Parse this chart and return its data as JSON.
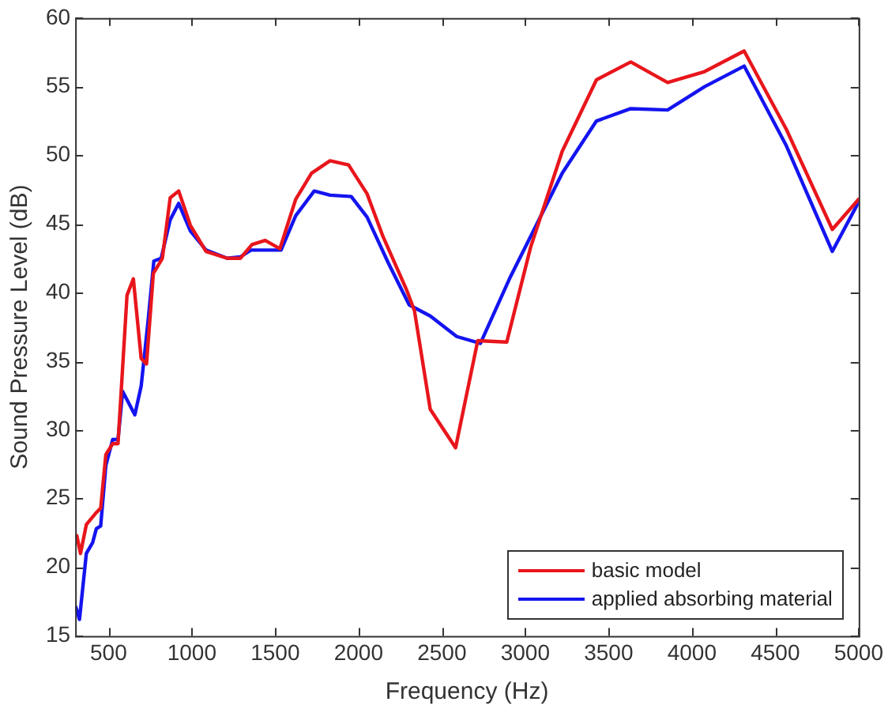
{
  "chart_data": {
    "type": "line",
    "xlabel": "Frequency (Hz)",
    "ylabel": "Sound Pressure Level (dB)",
    "xlim": [
      300,
      5000
    ],
    "xticks": [
      500,
      1000,
      1500,
      2000,
      2500,
      3000,
      3500,
      4000,
      4500,
      5000
    ],
    "ylim": [
      15,
      60
    ],
    "yticks": [
      15,
      20,
      25,
      30,
      35,
      40,
      45,
      50,
      55,
      60
    ],
    "legend": "bottom right",
    "marker": "none",
    "line_style": "solid",
    "series": [
      {
        "name": "basic model",
        "color": "#e8161c",
        "x": [
          310,
          332,
          367,
          421,
          453,
          484,
          525,
          557,
          611,
          649,
          696,
          728,
          769,
          823,
          870,
          921,
          991,
          1085,
          1212,
          1291,
          1361,
          1440,
          1528,
          1623,
          1718,
          1829,
          1940,
          2051,
          2146,
          2288,
          2335,
          2430,
          2582,
          2715,
          2889,
          3032,
          3222,
          3427,
          3633,
          3854,
          4076,
          4313,
          4566,
          4842,
          5000
        ],
        "values": [
          22.3,
          21.0,
          23.1,
          23.9,
          24.3,
          28.2,
          29.0,
          29.0,
          39.8,
          41.0,
          35.2,
          34.8,
          41.4,
          42.5,
          46.9,
          47.4,
          44.9,
          43.0,
          42.5,
          42.5,
          43.5,
          43.8,
          43.2,
          46.8,
          48.7,
          49.6,
          49.3,
          47.2,
          44.1,
          40.2,
          38.7,
          31.5,
          28.7,
          36.5,
          36.4,
          43.3,
          50.3,
          55.5,
          56.8,
          55.3,
          56.1,
          57.6,
          51.9,
          44.6,
          46.8
        ]
      },
      {
        "name": "applied absorbing material",
        "color": "#1414f0",
        "x": [
          304,
          326,
          367,
          405,
          427,
          453,
          484,
          525,
          557,
          585,
          658,
          696,
          737,
          772,
          816,
          870,
          921,
          991,
          1085,
          1212,
          1291,
          1354,
          1535,
          1623,
          1734,
          1829,
          1956,
          2051,
          2177,
          2304,
          2430,
          2589,
          2731,
          2905,
          3222,
          3427,
          3633,
          3854,
          4076,
          4313,
          4566,
          4842,
          5000
        ],
        "values": [
          17.1,
          16.2,
          21.0,
          21.8,
          22.8,
          23.0,
          27.4,
          29.3,
          29.3,
          32.8,
          31.1,
          33.2,
          37.9,
          42.3,
          42.5,
          45.3,
          46.5,
          44.5,
          43.1,
          42.5,
          42.6,
          43.1,
          43.1,
          45.6,
          47.4,
          47.1,
          47.0,
          45.5,
          42.2,
          39.1,
          38.3,
          36.8,
          36.3,
          41.0,
          48.7,
          52.5,
          53.4,
          53.3,
          55.0,
          56.5,
          50.7,
          43.0,
          46.6
        ]
      }
    ]
  }
}
